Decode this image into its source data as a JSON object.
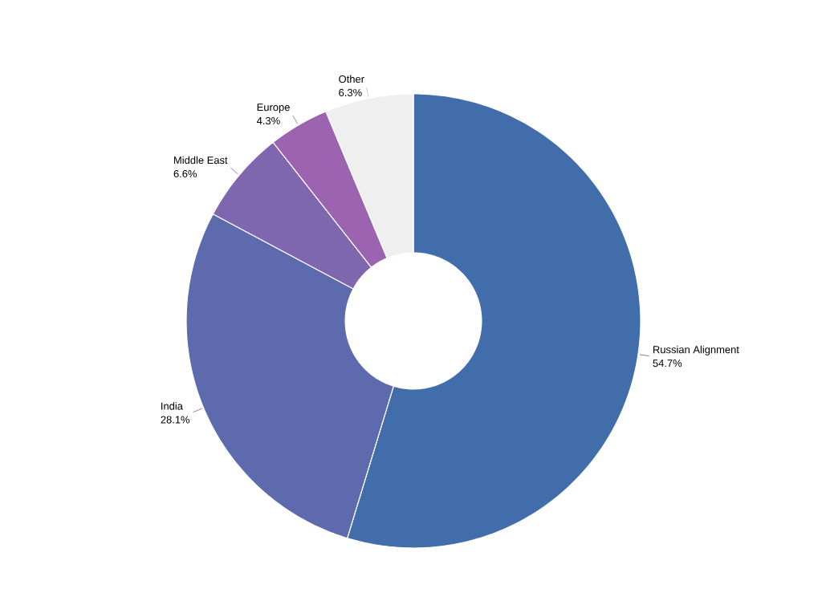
{
  "chart_data": {
    "type": "donut",
    "categories": [
      "Russian Alignment",
      "India",
      "Middle East",
      "Europe",
      "Other"
    ],
    "values": [
      54.7,
      28.1,
      6.6,
      4.3,
      6.3
    ],
    "colors": [
      "#416eab",
      "#5e6aae",
      "#7f67b0",
      "#9c64b0",
      "#efefef"
    ],
    "value_labels": [
      "54.7%",
      "28.1%",
      "6.6%",
      "4.3%",
      "6.3%"
    ]
  }
}
